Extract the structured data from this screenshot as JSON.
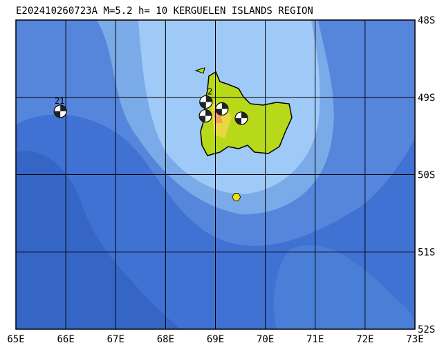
{
  "map": {
    "title": "E202410260723A M=5.2 h= 10 KERGUELEN ISLANDS REGION",
    "lon_ticks": [
      {
        "value": 65,
        "label": "65E"
      },
      {
        "value": 66,
        "label": "66E"
      },
      {
        "value": 67,
        "label": "67E"
      },
      {
        "value": 68,
        "label": "68E"
      },
      {
        "value": 69,
        "label": "69E"
      },
      {
        "value": 70,
        "label": "70E"
      },
      {
        "value": 71,
        "label": "71E"
      },
      {
        "value": 72,
        "label": "72E"
      },
      {
        "value": 73,
        "label": "73E"
      }
    ],
    "lat_ticks": [
      {
        "value": 48,
        "label": "48S"
      },
      {
        "value": 49,
        "label": "49S"
      },
      {
        "value": 50,
        "label": "50S"
      },
      {
        "value": 51,
        "label": "51S"
      },
      {
        "value": 52,
        "label": "52S"
      }
    ],
    "events": [
      {
        "label": "21",
        "lon": 65.89,
        "lat": 49.18
      },
      {
        "label": "2",
        "lon": 68.81,
        "lat": 49.06
      },
      {
        "lon": 68.8,
        "lat": 49.24
      },
      {
        "lon": 69.13,
        "lat": 49.15
      },
      {
        "lon": 69.52,
        "lat": 49.27
      }
    ],
    "epicenter": {
      "lon": 69.42,
      "lat": 50.29
    }
  }
}
